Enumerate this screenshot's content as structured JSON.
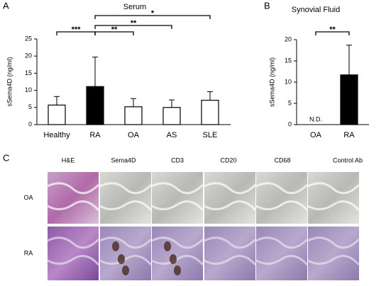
{
  "panels": {
    "a": "A",
    "b": "B",
    "c": "C"
  },
  "chart_data": [
    {
      "type": "bar",
      "title": "Serum",
      "ylabel": "sSema4D (ng/ml)",
      "categories": [
        "Healthy",
        "RA",
        "OA",
        "AS",
        "SLE"
      ],
      "values": [
        5.7,
        11.1,
        5.2,
        5.0,
        7.1
      ],
      "errors": [
        2.5,
        8.6,
        2.4,
        2.2,
        2.5
      ],
      "colors": [
        "#ffffff",
        "#000000",
        "#ffffff",
        "#ffffff",
        "#ffffff"
      ],
      "edgecolor": "#000000",
      "ylim": [
        0,
        25
      ],
      "yticks": [
        0,
        5,
        10,
        15,
        20,
        25
      ],
      "annotations": [
        "***",
        "**",
        "**",
        "*"
      ]
    },
    {
      "type": "bar",
      "title": "Synovial Fluid",
      "ylabel": "sSema4D (ng/ml)",
      "categories": [
        "OA",
        "RA"
      ],
      "values": [
        null,
        11.7
      ],
      "value_labels": [
        "N.D.",
        null
      ],
      "errors": [
        null,
        7.0
      ],
      "colors": [
        "#ffffff",
        "#000000"
      ],
      "edgecolor": "#000000",
      "ylim": [
        0,
        20
      ],
      "yticks": [
        0,
        5,
        10,
        15,
        20
      ],
      "annotations": [
        "**"
      ]
    }
  ],
  "histology": {
    "columns": [
      "H&E",
      "Sema4D",
      "CD3",
      "CD20",
      "CD68",
      "Control   Ab"
    ],
    "rows": [
      "OA",
      "RA"
    ]
  }
}
